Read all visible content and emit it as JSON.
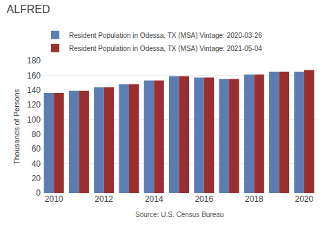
{
  "chart_data": {
    "type": "bar",
    "title": "ALFRED",
    "categories": [
      "2010",
      null,
      "2012",
      null,
      "2014",
      null,
      "2016",
      null,
      "2018",
      null,
      "2020"
    ],
    "series": [
      {
        "name": "Resident Population in Odessa, TX (MSA) Vintage: 2020-03-26",
        "color": "#5b7db1",
        "values": [
          136,
          139,
          144,
          148,
          153,
          159,
          157,
          155,
          161,
          165,
          165
        ]
      },
      {
        "name": "Resident Population in Odessa, TX (MSA) Vintage: 2021-05-04",
        "color": "#9b2f2f",
        "values": [
          136,
          139,
          144,
          148,
          153,
          159,
          157,
          155,
          161,
          165,
          167
        ]
      }
    ],
    "ylabel": "Thousands of Persons",
    "annotations": [
      {
        "text": "Source: U.S. Census Bureau"
      }
    ],
    "ylim": [
      0,
      180
    ],
    "yticks": [
      0,
      20,
      40,
      60,
      80,
      100,
      120,
      140,
      160,
      180
    ],
    "grid": true,
    "legend": "top"
  }
}
